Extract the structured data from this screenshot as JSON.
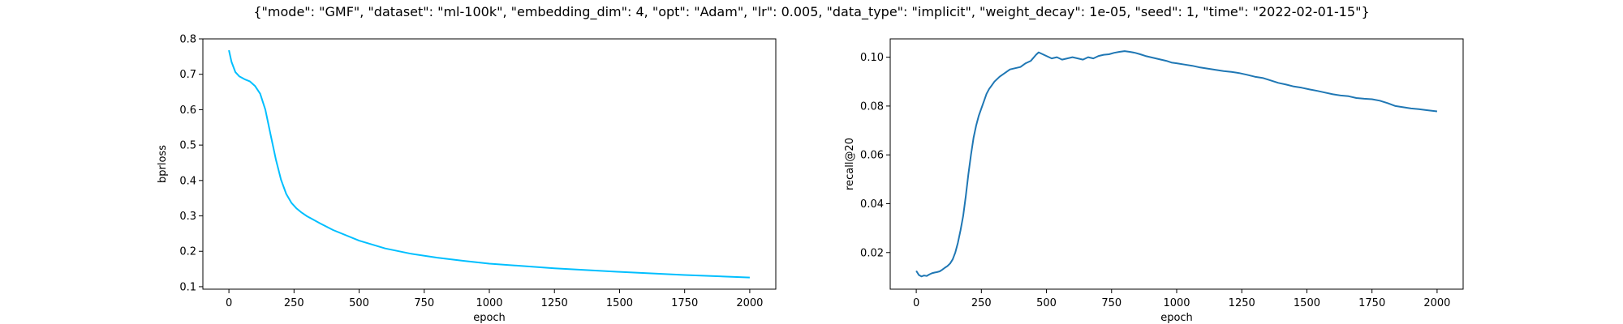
{
  "figure": {
    "title": "{\"mode\": \"GMF\", \"dataset\": \"ml-100k\", \"embedding_dim\": 4, \"opt\": \"Adam\", \"lr\": 0.005, \"data_type\": \"implicit\", \"weight_decay\": 1e-05, \"seed\": 1, \"time\": \"2022-02-01-15\"}"
  },
  "chart_data": [
    {
      "type": "line",
      "xlabel": "epoch",
      "ylabel": "bprloss",
      "xlim": [
        -100,
        2100
      ],
      "ylim": [
        0.093,
        0.8
      ],
      "xticks": [
        0,
        250,
        500,
        750,
        1000,
        1250,
        1500,
        1750,
        2000
      ],
      "xtick_labels": [
        "0",
        "250",
        "500",
        "750",
        "1000",
        "1250",
        "1500",
        "1750",
        "2000"
      ],
      "yticks": [
        0.1,
        0.2,
        0.3,
        0.4,
        0.5,
        0.6,
        0.7,
        0.8
      ],
      "ytick_labels": [
        "0.1",
        "0.2",
        "0.3",
        "0.4",
        "0.5",
        "0.6",
        "0.7",
        "0.8"
      ],
      "grid": false,
      "color": "#00bfff",
      "x": [
        0,
        10,
        25,
        40,
        60,
        80,
        100,
        120,
        140,
        160,
        180,
        200,
        220,
        240,
        260,
        280,
        300,
        350,
        400,
        500,
        600,
        700,
        800,
        900,
        1000,
        1250,
        1500,
        1750,
        2000
      ],
      "y": [
        0.768,
        0.735,
        0.706,
        0.694,
        0.686,
        0.68,
        0.667,
        0.645,
        0.6,
        0.53,
        0.46,
        0.402,
        0.362,
        0.337,
        0.321,
        0.309,
        0.299,
        0.279,
        0.26,
        0.23,
        0.208,
        0.193,
        0.182,
        0.173,
        0.165,
        0.152,
        0.142,
        0.133,
        0.126
      ]
    },
    {
      "type": "line",
      "xlabel": "epoch",
      "ylabel": "recall@20",
      "xlim": [
        -100,
        2100
      ],
      "ylim": [
        0.005,
        0.1075
      ],
      "xticks": [
        0,
        250,
        500,
        750,
        1000,
        1250,
        1500,
        1750,
        2000
      ],
      "xtick_labels": [
        "0",
        "250",
        "500",
        "750",
        "1000",
        "1250",
        "1500",
        "1750",
        "2000"
      ],
      "yticks": [
        0.02,
        0.04,
        0.06,
        0.08,
        0.1
      ],
      "ytick_labels": [
        "0.02",
        "0.04",
        "0.06",
        "0.08",
        "0.10"
      ],
      "grid": false,
      "color": "#1f77b4",
      "x": [
        0,
        10,
        20,
        30,
        40,
        50,
        60,
        70,
        80,
        90,
        100,
        110,
        120,
        130,
        140,
        150,
        160,
        170,
        180,
        190,
        200,
        210,
        220,
        230,
        240,
        250,
        260,
        270,
        280,
        290,
        300,
        320,
        340,
        360,
        380,
        400,
        420,
        440,
        460,
        470,
        480,
        500,
        520,
        540,
        560,
        580,
        600,
        620,
        640,
        660,
        680,
        700,
        720,
        740,
        760,
        780,
        800,
        820,
        840,
        860,
        880,
        900,
        920,
        940,
        960,
        980,
        1000,
        1030,
        1060,
        1090,
        1120,
        1150,
        1180,
        1210,
        1240,
        1270,
        1300,
        1330,
        1360,
        1390,
        1420,
        1450,
        1480,
        1510,
        1540,
        1570,
        1600,
        1630,
        1660,
        1690,
        1720,
        1750,
        1780,
        1810,
        1840,
        1870,
        1900,
        1930,
        1960,
        2000
      ],
      "y": [
        0.0125,
        0.0108,
        0.0102,
        0.0106,
        0.0104,
        0.011,
        0.0115,
        0.0118,
        0.012,
        0.0123,
        0.013,
        0.0138,
        0.0145,
        0.0155,
        0.0172,
        0.02,
        0.024,
        0.029,
        0.035,
        0.043,
        0.052,
        0.06,
        0.067,
        0.072,
        0.076,
        0.079,
        0.082,
        0.085,
        0.087,
        0.0885,
        0.09,
        0.092,
        0.0935,
        0.095,
        0.0955,
        0.096,
        0.0975,
        0.0985,
        0.101,
        0.102,
        0.1015,
        0.1005,
        0.0995,
        0.1,
        0.099,
        0.0995,
        0.1,
        0.0995,
        0.099,
        0.1,
        0.0995,
        0.1005,
        0.101,
        0.1012,
        0.1018,
        0.1022,
        0.1025,
        0.1022,
        0.1018,
        0.1012,
        0.1005,
        0.1,
        0.0995,
        0.099,
        0.0985,
        0.0978,
        0.0975,
        0.097,
        0.0965,
        0.0958,
        0.0953,
        0.0948,
        0.0943,
        0.094,
        0.0935,
        0.0928,
        0.092,
        0.0915,
        0.0905,
        0.0895,
        0.0888,
        0.088,
        0.0875,
        0.0868,
        0.0862,
        0.0855,
        0.0848,
        0.0843,
        0.084,
        0.0833,
        0.083,
        0.0828,
        0.0822,
        0.0812,
        0.08,
        0.0795,
        0.079,
        0.0787,
        0.0783,
        0.0778
      ]
    }
  ]
}
